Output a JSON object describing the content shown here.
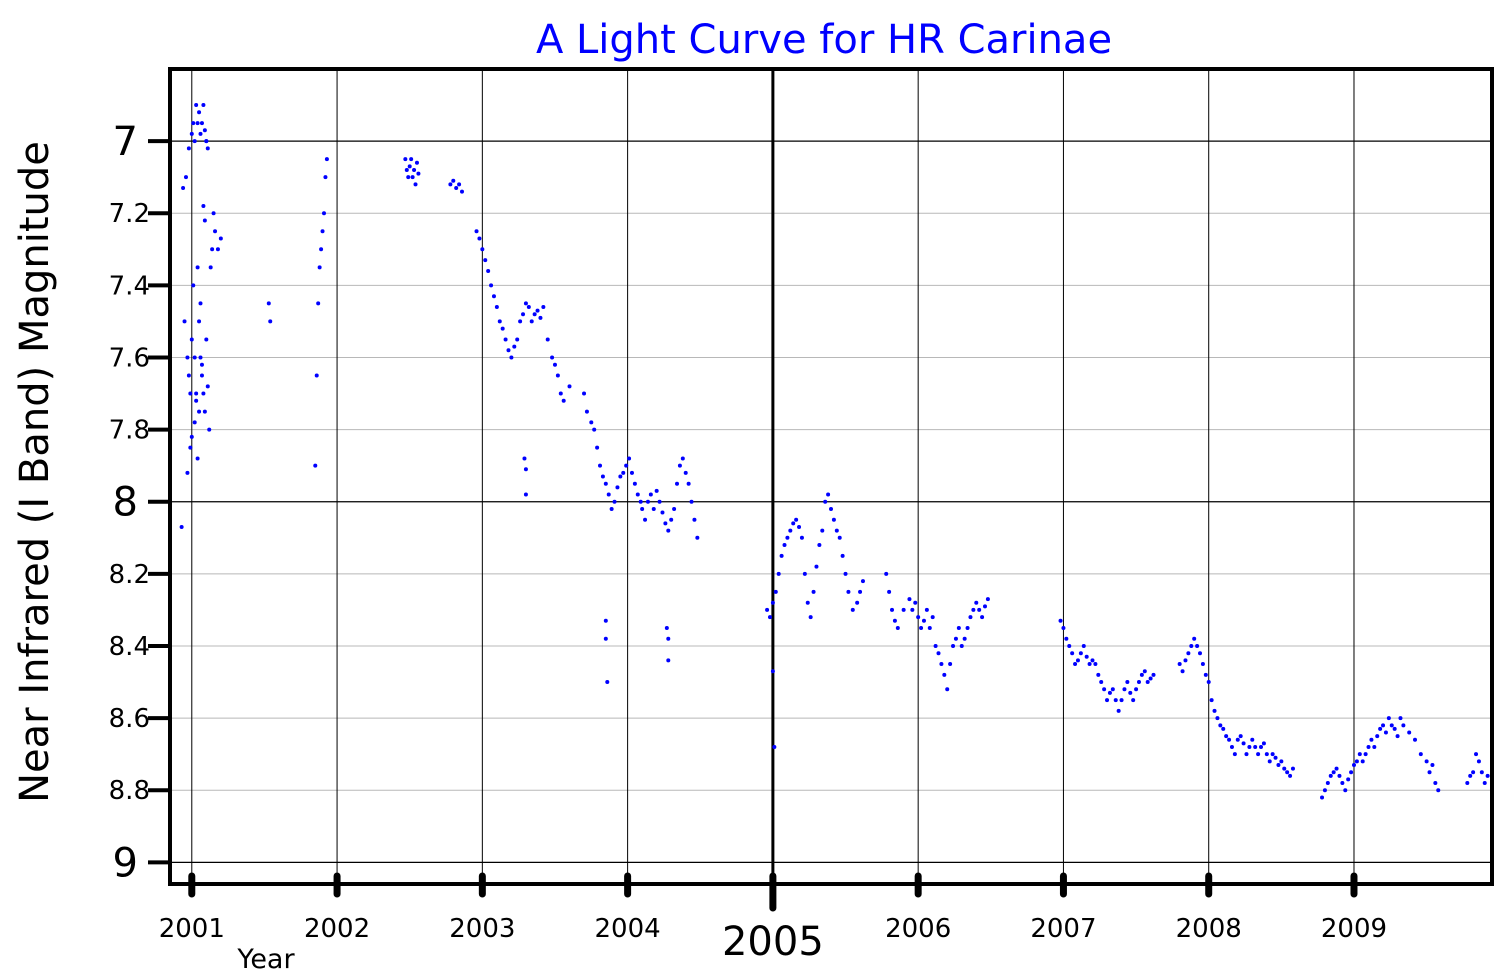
{
  "chart_data": {
    "type": "scatter",
    "title": "A Light Curve for HR Carinae",
    "ylabel": "Near Infrared (I Band) Magnitude",
    "xlabel": "Year",
    "y_inverted": true,
    "xlim": [
      2000.85,
      2009.95
    ],
    "ylim": [
      6.8,
      9.06
    ],
    "x_ticks": [
      {
        "value": 2001,
        "label": "2001"
      },
      {
        "value": 2002,
        "label": "2002"
      },
      {
        "value": 2003,
        "label": "2003"
      },
      {
        "value": 2004,
        "label": "2004"
      },
      {
        "value": 2005,
        "label": "2005",
        "major": true
      },
      {
        "value": 2006,
        "label": "2006"
      },
      {
        "value": 2007,
        "label": "2007"
      },
      {
        "value": 2008,
        "label": "2008"
      },
      {
        "value": 2009,
        "label": "2009"
      }
    ],
    "y_ticks": [
      {
        "value": 7,
        "label": "7",
        "major": true
      },
      {
        "value": 7.2,
        "label": "7.2"
      },
      {
        "value": 7.4,
        "label": "7.4"
      },
      {
        "value": 7.6,
        "label": "7.6"
      },
      {
        "value": 7.8,
        "label": "7.8"
      },
      {
        "value": 8,
        "label": "8",
        "major": true
      },
      {
        "value": 8.2,
        "label": "8.2"
      },
      {
        "value": 8.4,
        "label": "8.4"
      },
      {
        "value": 8.6,
        "label": "8.6"
      },
      {
        "value": 8.8,
        "label": "8.8"
      },
      {
        "value": 9,
        "label": "9",
        "major": true
      }
    ],
    "grid": true,
    "marker_color": "#0000ff",
    "series": [
      {
        "x": [
          2000.93,
          2000.95,
          2000.97,
          2000.98,
          2000.99,
          2001.0,
          2001.01,
          2001.02,
          2001.03,
          2001.04,
          2001.05,
          2001.06,
          2001.07,
          2001.08,
          2001.09,
          2001.1,
          2001.11,
          2001.12,
          2001.13,
          2001.14,
          2001.15,
          2001.16,
          2001.18,
          2001.2,
          2000.96,
          2000.98,
          2001.0,
          2001.01,
          2001.02,
          2001.03,
          2001.04,
          2001.05,
          2001.06,
          2001.07,
          2001.08,
          2001.09,
          2001.1,
          2000.94,
          2000.97,
          2000.99,
          2001.0,
          2001.02,
          2001.03,
          2001.04,
          2001.05,
          2001.06,
          2001.07,
          2001.08,
          2001.09,
          2001.1,
          2001.11,
          2001.53,
          2001.54,
          2001.85,
          2001.86,
          2001.87,
          2001.88,
          2001.89,
          2001.9,
          2001.91,
          2001.92,
          2001.93,
          2002.47,
          2002.48,
          2002.49,
          2002.5,
          2002.51,
          2002.52,
          2002.53,
          2002.54,
          2002.55,
          2002.56,
          2002.78,
          2002.8,
          2002.82,
          2002.84,
          2002.86,
          2002.96,
          2002.98,
          2003.0,
          2003.02,
          2003.04,
          2003.06,
          2003.08,
          2003.1,
          2003.12,
          2003.14,
          2003.16,
          2003.18,
          2003.2,
          2003.22,
          2003.24,
          2003.26,
          2003.28,
          2003.3,
          2003.32,
          2003.34,
          2003.36,
          2003.38,
          2003.4,
          2003.42,
          2003.45,
          2003.48,
          2003.5,
          2003.52,
          2003.54,
          2003.56,
          2003.6,
          2003.7,
          2003.72,
          2003.75,
          2003.77,
          2003.79,
          2003.81,
          2003.83,
          2003.85,
          2003.87,
          2003.89,
          2003.91,
          2003.93,
          2003.95,
          2003.97,
          2003.99,
          2004.01,
          2004.03,
          2004.05,
          2004.07,
          2004.09,
          2004.1,
          2004.12,
          2004.14,
          2004.16,
          2004.18,
          2004.2,
          2004.22,
          2004.24,
          2004.26,
          2004.28,
          2004.3,
          2004.32,
          2004.34,
          2004.36,
          2004.38,
          2004.4,
          2004.42,
          2004.44,
          2004.46,
          2004.48,
          2003.29,
          2003.3,
          2003.3,
          2003.85,
          2003.85,
          2003.86,
          2004.27,
          2004.28,
          2004.28,
          2004.96,
          2004.98,
          2005.0,
          2005.02,
          2005.04,
          2005.06,
          2005.08,
          2005.1,
          2005.12,
          2005.14,
          2005.16,
          2005.18,
          2005.2,
          2005.22,
          2005.24,
          2005.26,
          2005.28,
          2005.3,
          2005.32,
          2005.34,
          2005.36,
          2005.38,
          2005.4,
          2005.42,
          2005.44,
          2005.46,
          2005.48,
          2005.5,
          2005.52,
          2005.55,
          2005.58,
          2005.6,
          2005.62,
          2005.78,
          2005.8,
          2005.82,
          2005.84,
          2005.86,
          2005.9,
          2005.94,
          2005.96,
          2005.98,
          2006.0,
          2006.02,
          2006.04,
          2006.06,
          2006.08,
          2006.1,
          2006.12,
          2006.14,
          2006.16,
          2006.18,
          2006.2,
          2006.22,
          2006.24,
          2006.26,
          2006.28,
          2006.3,
          2006.32,
          2006.34,
          2006.36,
          2006.38,
          2006.4,
          2006.42,
          2006.44,
          2006.46,
          2006.48,
          2005.0,
          2005.01,
          2006.98,
          2007.0,
          2007.02,
          2007.04,
          2007.06,
          2007.08,
          2007.1,
          2007.12,
          2007.14,
          2007.16,
          2007.18,
          2007.2,
          2007.22,
          2007.24,
          2007.26,
          2007.28,
          2007.3,
          2007.32,
          2007.34,
          2007.36,
          2007.38,
          2007.4,
          2007.42,
          2007.44,
          2007.46,
          2007.48,
          2007.5,
          2007.52,
          2007.54,
          2007.56,
          2007.58,
          2007.6,
          2007.62,
          2007.8,
          2007.82,
          2007.84,
          2007.86,
          2007.88,
          2007.9,
          2007.92,
          2007.94,
          2007.96,
          2007.98,
          2008.0,
          2008.02,
          2008.04,
          2008.06,
          2008.08,
          2008.1,
          2008.12,
          2008.14,
          2008.16,
          2008.18,
          2008.2,
          2008.22,
          2008.24,
          2008.26,
          2008.28,
          2008.3,
          2008.32,
          2008.34,
          2008.36,
          2008.38,
          2008.4,
          2008.42,
          2008.44,
          2008.46,
          2008.48,
          2008.5,
          2008.52,
          2008.54,
          2008.56,
          2008.58,
          2008.78,
          2008.8,
          2008.82,
          2008.84,
          2008.86,
          2008.88,
          2008.9,
          2008.92,
          2008.94,
          2008.96,
          2008.98,
          2009.0,
          2009.02,
          2009.04,
          2009.06,
          2009.08,
          2009.1,
          2009.12,
          2009.14,
          2009.16,
          2009.18,
          2009.2,
          2009.22,
          2009.24,
          2009.26,
          2009.28,
          2009.3,
          2009.32,
          2009.34,
          2009.38,
          2009.42,
          2009.46,
          2009.5,
          2009.52,
          2009.54,
          2009.56,
          2009.58,
          2009.78,
          2009.8,
          2009.82,
          2009.84,
          2009.86,
          2009.88,
          2009.9,
          2009.92
        ],
        "y": [
          8.07,
          7.5,
          7.6,
          7.65,
          7.7,
          7.55,
          7.4,
          7.6,
          7.7,
          7.35,
          7.5,
          7.45,
          7.62,
          7.7,
          7.75,
          7.55,
          7.68,
          7.8,
          7.35,
          7.3,
          7.2,
          7.25,
          7.3,
          7.27,
          7.1,
          7.02,
          6.98,
          6.95,
          7.0,
          6.9,
          6.95,
          6.92,
          6.98,
          6.95,
          6.9,
          6.97,
          7.0,
          7.13,
          7.92,
          7.85,
          7.82,
          7.78,
          7.72,
          7.88,
          7.75,
          7.6,
          7.65,
          7.18,
          7.22,
          7.0,
          7.02,
          7.45,
          7.5,
          7.9,
          7.65,
          7.45,
          7.35,
          7.3,
          7.25,
          7.2,
          7.1,
          7.05,
          7.05,
          7.08,
          7.1,
          7.07,
          7.05,
          7.1,
          7.08,
          7.12,
          7.06,
          7.09,
          7.12,
          7.11,
          7.13,
          7.12,
          7.14,
          7.25,
          7.27,
          7.3,
          7.33,
          7.36,
          7.4,
          7.43,
          7.46,
          7.5,
          7.52,
          7.55,
          7.58,
          7.6,
          7.57,
          7.55,
          7.5,
          7.48,
          7.45,
          7.46,
          7.5,
          7.48,
          7.47,
          7.49,
          7.46,
          7.55,
          7.6,
          7.62,
          7.65,
          7.7,
          7.72,
          7.68,
          7.7,
          7.75,
          7.78,
          7.8,
          7.85,
          7.9,
          7.93,
          7.95,
          7.98,
          8.02,
          8.0,
          7.96,
          7.93,
          7.92,
          7.9,
          7.88,
          7.92,
          7.95,
          7.98,
          8.0,
          8.02,
          8.05,
          8.0,
          7.98,
          8.02,
          7.97,
          8.0,
          8.03,
          8.06,
          8.08,
          8.05,
          8.02,
          7.95,
          7.9,
          7.88,
          7.92,
          7.95,
          8.0,
          8.05,
          8.1,
          7.88,
          7.91,
          7.98,
          8.33,
          8.38,
          8.5,
          8.35,
          8.38,
          8.44,
          8.3,
          8.32,
          8.28,
          8.25,
          8.2,
          8.15,
          8.12,
          8.1,
          8.08,
          8.06,
          8.05,
          8.07,
          8.1,
          8.2,
          8.28,
          8.32,
          8.25,
          8.18,
          8.12,
          8.08,
          8.0,
          7.98,
          8.02,
          8.05,
          8.08,
          8.1,
          8.15,
          8.2,
          8.25,
          8.3,
          8.28,
          8.25,
          8.22,
          8.2,
          8.25,
          8.3,
          8.33,
          8.35,
          8.3,
          8.27,
          8.3,
          8.28,
          8.32,
          8.35,
          8.33,
          8.3,
          8.35,
          8.32,
          8.4,
          8.42,
          8.45,
          8.48,
          8.52,
          8.45,
          8.4,
          8.38,
          8.35,
          8.4,
          8.38,
          8.35,
          8.32,
          8.3,
          8.28,
          8.3,
          8.32,
          8.29,
          8.27,
          8.47,
          8.68,
          8.33,
          8.35,
          8.38,
          8.4,
          8.42,
          8.45,
          8.44,
          8.42,
          8.4,
          8.43,
          8.45,
          8.44,
          8.45,
          8.48,
          8.5,
          8.52,
          8.55,
          8.53,
          8.52,
          8.55,
          8.58,
          8.55,
          8.52,
          8.5,
          8.53,
          8.55,
          8.52,
          8.5,
          8.48,
          8.47,
          8.5,
          8.49,
          8.48,
          8.45,
          8.47,
          8.44,
          8.42,
          8.4,
          8.38,
          8.4,
          8.42,
          8.45,
          8.48,
          8.5,
          8.55,
          8.58,
          8.6,
          8.62,
          8.63,
          8.65,
          8.66,
          8.68,
          8.7,
          8.66,
          8.65,
          8.67,
          8.7,
          8.68,
          8.66,
          8.68,
          8.7,
          8.68,
          8.67,
          8.7,
          8.72,
          8.7,
          8.71,
          8.73,
          8.72,
          8.74,
          8.75,
          8.76,
          8.74,
          8.82,
          8.8,
          8.78,
          8.76,
          8.75,
          8.74,
          8.76,
          8.78,
          8.8,
          8.77,
          8.75,
          8.73,
          8.72,
          8.7,
          8.72,
          8.7,
          8.68,
          8.66,
          8.68,
          8.65,
          8.63,
          8.62,
          8.64,
          8.6,
          8.62,
          8.63,
          8.65,
          8.6,
          8.62,
          8.64,
          8.66,
          8.7,
          8.72,
          8.75,
          8.73,
          8.78,
          8.8,
          8.78,
          8.76,
          8.75,
          8.7,
          8.72,
          8.75,
          8.78,
          8.76
        ]
      }
    ]
  }
}
